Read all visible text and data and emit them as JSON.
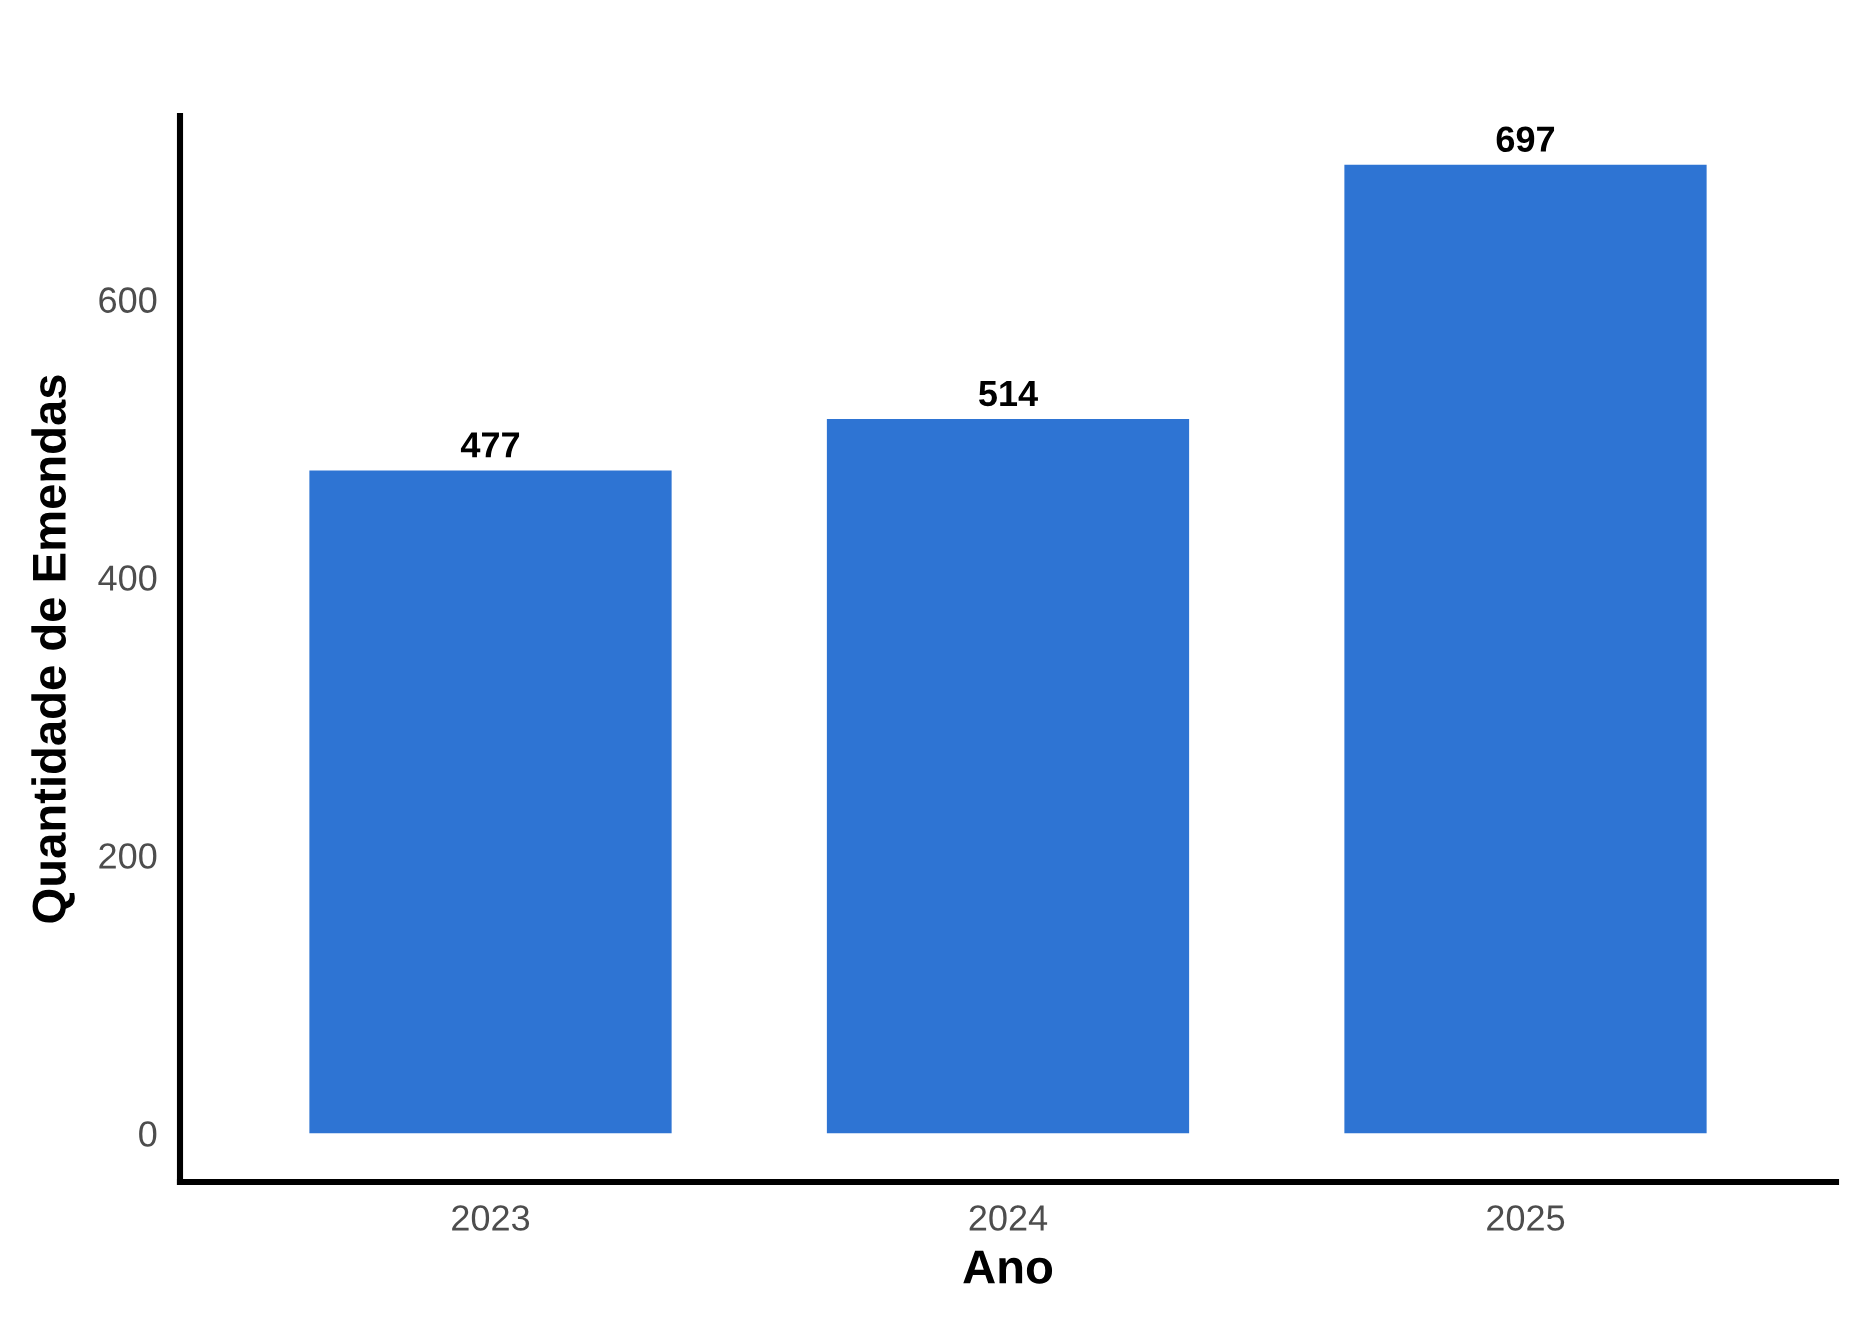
{
  "chart_data": {
    "type": "bar",
    "xlabel": "Ano",
    "ylabel": "Quantidade de Emendas",
    "categories": [
      "2023",
      "2024",
      "2025"
    ],
    "values": [
      477,
      514,
      697
    ],
    "color": "#2e74d3",
    "ylim": [
      -35,
      732
    ],
    "yticks": [
      0,
      200,
      400,
      600
    ],
    "data_labels": true,
    "grid": false,
    "legend": false
  }
}
